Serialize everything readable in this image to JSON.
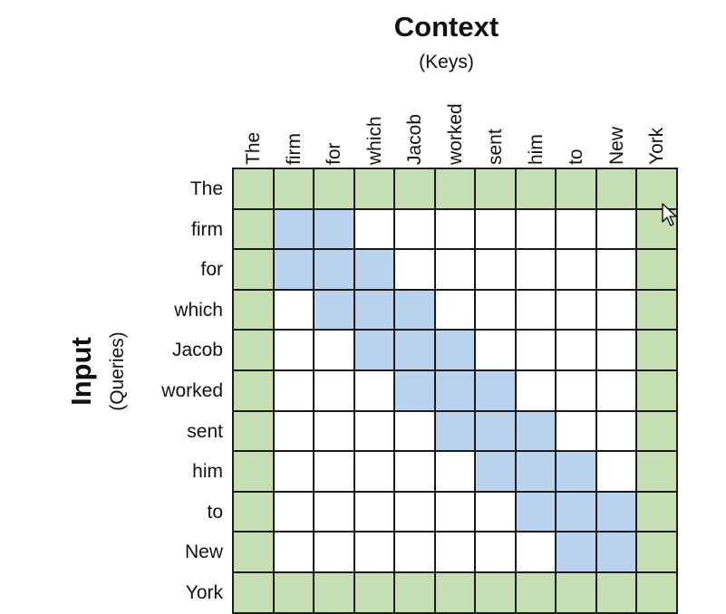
{
  "context": {
    "title": "Context",
    "subtitle": "(Keys)"
  },
  "input": {
    "title": "Input",
    "subtitle": "(Queries)"
  },
  "tokens": [
    "The",
    "firm",
    "for",
    "which",
    "Jacob",
    "worked",
    "sent",
    "him",
    "to",
    "New",
    "York"
  ],
  "attention": {
    "global_tokens": [
      "The",
      "York"
    ],
    "window_rows": [
      [
        "firm",
        "for"
      ],
      [
        "firm",
        "for",
        "which"
      ],
      [
        "for",
        "which",
        "Jacob"
      ],
      [
        "which",
        "Jacob",
        "worked"
      ],
      [
        "Jacob",
        "worked",
        "sent"
      ],
      [
        "worked",
        "sent",
        "him"
      ],
      [
        "sent",
        "him",
        "to"
      ],
      [
        "him",
        "to",
        "New"
      ],
      [
        "to",
        "New"
      ]
    ]
  },
  "colors": {
    "global": "#c5dfb2",
    "window": "#b9d3ee",
    "empty": "#ffffff",
    "grid_line": "#1a1a1a"
  },
  "icons": {
    "cursor": "mouse-pointer-icon"
  }
}
